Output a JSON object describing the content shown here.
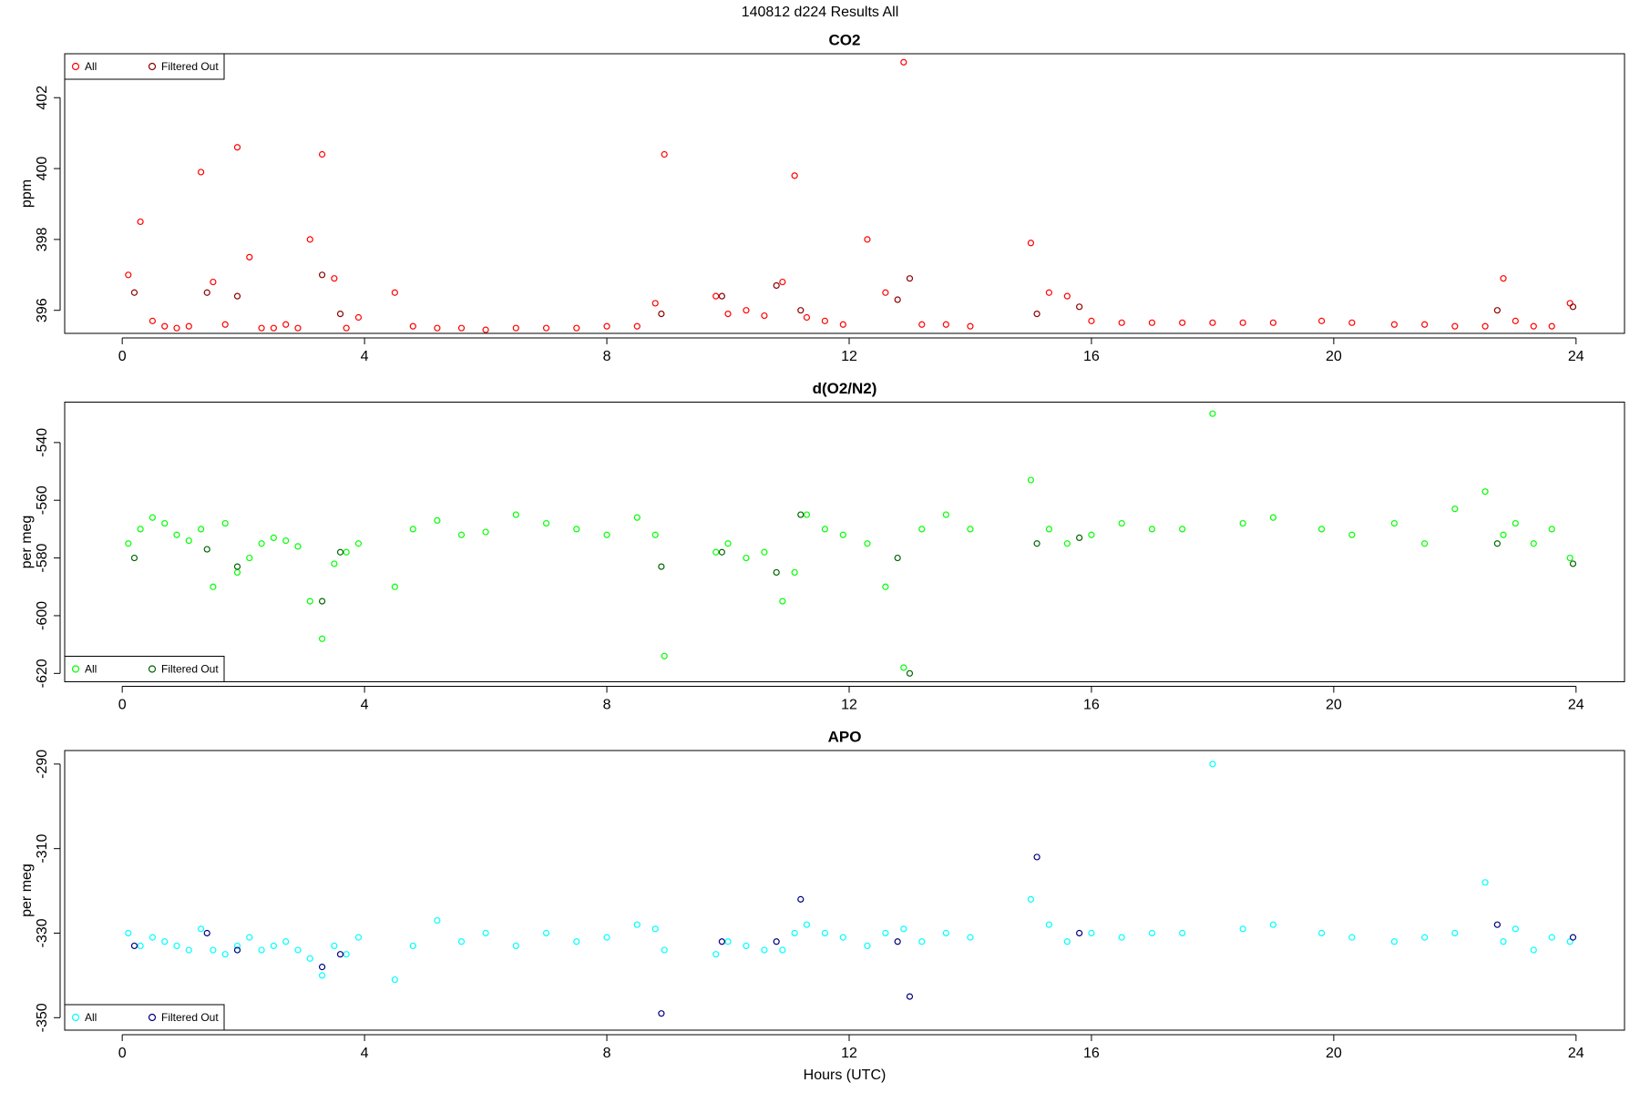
{
  "title": "140812   d224   Results All",
  "chart_data": [
    {
      "type": "scatter",
      "title": "CO2",
      "ylabel": "ppm",
      "xlim": [
        -0.95,
        24.8
      ],
      "xticks": [
        0,
        4,
        8,
        12,
        16,
        20,
        24
      ],
      "ylim": [
        395.35,
        403.24
      ],
      "yticks": [
        396,
        398,
        400,
        402
      ],
      "legend": "top-left",
      "series": [
        {
          "name": "All",
          "color": "#ff0000",
          "x": [
            0.1,
            0.3,
            0.5,
            0.7,
            0.9,
            1.1,
            1.3,
            1.5,
            1.7,
            1.9,
            2.1,
            2.3,
            2.5,
            2.7,
            2.9,
            3.1,
            3.3,
            3.5,
            3.7,
            3.9,
            4.5,
            4.8,
            5.2,
            5.6,
            6.0,
            6.5,
            7.0,
            7.5,
            8.0,
            8.5,
            8.8,
            8.95,
            9.8,
            10.0,
            10.3,
            10.6,
            10.9,
            11.1,
            11.3,
            11.6,
            11.9,
            12.3,
            12.6,
            12.9,
            13.2,
            13.6,
            14.0,
            15.0,
            15.3,
            15.6,
            16.0,
            16.5,
            17.0,
            17.5,
            18.0,
            18.5,
            19.0,
            19.8,
            20.3,
            21.0,
            21.5,
            22.0,
            22.5,
            22.8,
            23.0,
            23.3,
            23.6,
            23.9
          ],
          "values": [
            397.0,
            398.5,
            395.7,
            395.55,
            395.5,
            395.55,
            399.9,
            396.8,
            395.6,
            400.6,
            397.5,
            395.5,
            395.5,
            395.6,
            395.5,
            398.0,
            400.4,
            396.9,
            395.5,
            395.8,
            396.5,
            395.55,
            395.5,
            395.5,
            395.45,
            395.5,
            395.5,
            395.5,
            395.55,
            395.55,
            396.2,
            400.4,
            396.4,
            395.9,
            396.0,
            395.85,
            396.8,
            399.8,
            395.8,
            395.7,
            395.6,
            398.0,
            396.5,
            403.0,
            395.6,
            395.6,
            395.55,
            397.9,
            396.5,
            396.4,
            395.7,
            395.65,
            395.65,
            395.65,
            395.65,
            395.65,
            395.65,
            395.7,
            395.65,
            395.6,
            395.6,
            395.55,
            395.55,
            396.9,
            395.7,
            395.55,
            395.55,
            396.2
          ]
        },
        {
          "name": "Filtered Out",
          "color": "#8b0000",
          "x": [
            0.2,
            1.4,
            1.9,
            3.3,
            3.6,
            8.9,
            9.9,
            10.8,
            11.2,
            12.8,
            13.0,
            15.1,
            15.8,
            22.7,
            23.95
          ],
          "values": [
            396.5,
            396.5,
            396.4,
            397.0,
            395.9,
            395.9,
            396.4,
            396.7,
            396.0,
            396.3,
            396.9,
            395.9,
            396.1,
            396.0,
            396.1
          ]
        }
      ]
    },
    {
      "type": "scatter",
      "title": "d(O2/N2)",
      "ylabel": "per meg",
      "xlim": [
        -0.95,
        24.8
      ],
      "xticks": [
        0,
        4,
        8,
        12,
        16,
        20,
        24
      ],
      "ylim": [
        -622.9,
        -526
      ],
      "yticks": [
        -620,
        -600,
        -580,
        -560,
        -540
      ],
      "legend": "bottom-left",
      "series": [
        {
          "name": "All",
          "color": "#00ff00",
          "x": [
            0.1,
            0.3,
            0.5,
            0.7,
            0.9,
            1.1,
            1.3,
            1.5,
            1.7,
            1.9,
            2.1,
            2.3,
            2.5,
            2.7,
            2.9,
            3.1,
            3.3,
            3.5,
            3.7,
            3.9,
            4.5,
            4.8,
            5.2,
            5.6,
            6.0,
            6.5,
            7.0,
            7.5,
            8.0,
            8.5,
            8.8,
            8.95,
            9.8,
            10.0,
            10.3,
            10.6,
            10.9,
            11.1,
            11.3,
            11.6,
            11.9,
            12.3,
            12.6,
            12.9,
            13.2,
            13.6,
            14.0,
            15.0,
            15.3,
            15.6,
            16.0,
            16.5,
            17.0,
            17.5,
            18.0,
            18.5,
            19.0,
            19.8,
            20.3,
            21.0,
            21.5,
            22.0,
            22.5,
            22.8,
            23.0,
            23.3,
            23.6,
            23.9
          ],
          "values": [
            -575,
            -570,
            -566,
            -568,
            -572,
            -574,
            -570,
            -590,
            -568,
            -585,
            -580,
            -575,
            -573,
            -574,
            -576,
            -595,
            -608,
            -582,
            -578,
            -575,
            -590,
            -570,
            -567,
            -572,
            -571,
            -565,
            -568,
            -570,
            -572,
            -566,
            -572,
            -614,
            -578,
            -575,
            -580,
            -578,
            -595,
            -585,
            -565,
            -570,
            -572,
            -575,
            -590,
            -618,
            -570,
            -565,
            -570,
            -553,
            -570,
            -575,
            -572,
            -568,
            -570,
            -570,
            -530,
            -568,
            -566,
            -570,
            -572,
            -568,
            -575,
            -563,
            -557,
            -572,
            -568,
            -575,
            -570,
            -580
          ]
        },
        {
          "name": "Filtered Out",
          "color": "#006400",
          "x": [
            0.2,
            1.4,
            1.9,
            3.3,
            3.6,
            8.9,
            9.9,
            10.8,
            11.2,
            12.8,
            13.0,
            15.1,
            15.8,
            22.7,
            23.95
          ],
          "values": [
            -580,
            -577,
            -583,
            -595,
            -578,
            -583,
            -578,
            -585,
            -565,
            -580,
            -620,
            -575,
            -573,
            -575,
            -582
          ]
        }
      ]
    },
    {
      "type": "scatter",
      "title": "APO",
      "ylabel": "per meg",
      "xlabel": "Hours (UTC)",
      "xlim": [
        -0.95,
        24.8
      ],
      "xticks": [
        0,
        4,
        8,
        12,
        16,
        20,
        24
      ],
      "ylim": [
        -352.95,
        -286.8
      ],
      "yticks": [
        -350,
        -330,
        -310,
        -290
      ],
      "legend": "bottom-left",
      "series": [
        {
          "name": "All",
          "color": "#00ffff",
          "x": [
            0.1,
            0.3,
            0.5,
            0.7,
            0.9,
            1.1,
            1.3,
            1.5,
            1.7,
            1.9,
            2.1,
            2.3,
            2.5,
            2.7,
            2.9,
            3.1,
            3.3,
            3.5,
            3.7,
            3.9,
            4.5,
            4.8,
            5.2,
            5.6,
            6.0,
            6.5,
            7.0,
            7.5,
            8.0,
            8.5,
            8.8,
            8.95,
            9.8,
            10.0,
            10.3,
            10.6,
            10.9,
            11.1,
            11.3,
            11.6,
            11.9,
            12.3,
            12.6,
            12.9,
            13.2,
            13.6,
            14.0,
            15.0,
            15.3,
            15.6,
            16.0,
            16.5,
            17.0,
            17.5,
            18.0,
            18.5,
            19.0,
            19.8,
            20.3,
            21.0,
            21.5,
            22.0,
            22.5,
            22.8,
            23.0,
            23.3,
            23.6,
            23.9
          ],
          "values": [
            -330,
            -333,
            -331,
            -332,
            -333,
            -334,
            -329,
            -334,
            -335,
            -333,
            -331,
            -334,
            -333,
            -332,
            -334,
            -336,
            -340,
            -333,
            -335,
            -331,
            -341,
            -333,
            -327,
            -332,
            -330,
            -333,
            -330,
            -332,
            -331,
            -328,
            -329,
            -334,
            -335,
            -332,
            -333,
            -334,
            -334,
            -330,
            -328,
            -330,
            -331,
            -333,
            -330,
            -329,
            -332,
            -330,
            -331,
            -322,
            -328,
            -332,
            -330,
            -331,
            -330,
            -330,
            -290,
            -329,
            -328,
            -330,
            -331,
            -332,
            -331,
            -330,
            -318,
            -332,
            -329,
            -334,
            -331,
            -332
          ]
        },
        {
          "name": "Filtered Out",
          "color": "#000080",
          "x": [
            0.2,
            1.4,
            1.9,
            3.3,
            3.6,
            8.9,
            9.9,
            10.8,
            11.2,
            12.8,
            13.0,
            15.1,
            15.8,
            22.7,
            23.95
          ],
          "values": [
            -333,
            -330,
            -334,
            -338,
            -335,
            -349,
            -332,
            -332,
            -322,
            -332,
            -345,
            -312,
            -330,
            -328,
            -331
          ]
        }
      ]
    }
  ]
}
